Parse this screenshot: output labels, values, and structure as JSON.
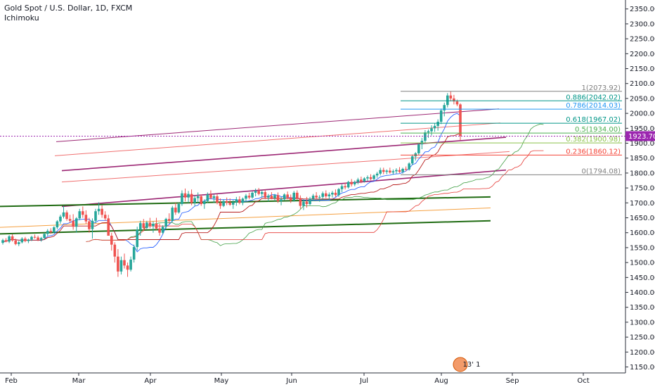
{
  "legend": {
    "symbol": "Gold Spot / U.S. Dollar, 1D, FXCM",
    "indicator": "Ichimoku"
  },
  "price_label": "1923.70",
  "event_badge": "13' 1",
  "colors": {
    "up": "#26a69a",
    "down": "#ef5350",
    "fib_gray": "#808080",
    "fib_teal": "#009688",
    "fib_blue": "#2196f3",
    "fib_green": "#4caf50",
    "fib_lime": "#8bc34a",
    "fib_red": "#f44336",
    "channel_purple": "#9c2774",
    "channel_red": "#f07070",
    "green_line": "#1f6b12",
    "orange_line": "#f5a040",
    "price_line": "#9c27b0"
  },
  "chart_data": {
    "type": "candlestick",
    "y_axis": {
      "min": 1130,
      "max": 2380,
      "ticks": [
        1150,
        1200,
        1250,
        1300,
        1350,
        1400,
        1450,
        1500,
        1550,
        1600,
        1650,
        1700,
        1750,
        1800,
        1850,
        1900,
        1950,
        2000,
        2050,
        2100,
        2150,
        2200,
        2250,
        2300,
        2350
      ],
      "tick_labels": [
        "1150.00",
        "1200.00",
        "1250.00",
        "1300.00",
        "1350.00",
        "1400.00",
        "1450.00",
        "1500.00",
        "1550.00",
        "1600.00",
        "1650.00",
        "1700.00",
        "1750.00",
        "1800.00",
        "1850.00",
        "1900.00",
        "1950.00",
        "2000.00",
        "2050.00",
        "2100.00",
        "2150.00",
        "2200.00",
        "2250.00",
        "2300.00",
        "2350.00"
      ]
    },
    "x_axis": {
      "labels": [
        "Feb",
        "Mar",
        "Apr",
        "May",
        "Jun",
        "Jul",
        "Aug",
        "Sep",
        "Oct"
      ]
    },
    "fib_levels": [
      {
        "label": "1(2073.92)",
        "value": 2073.92,
        "color": "#808080"
      },
      {
        "label": "0.886(2042.02)",
        "value": 2042.02,
        "color": "#009688"
      },
      {
        "label": "0.786(2014.03)",
        "value": 2014.03,
        "color": "#2196f3"
      },
      {
        "label": "0.618(1967.02)",
        "value": 1967.02,
        "color": "#009688"
      },
      {
        "label": "0.5(1934.00)",
        "value": 1934.0,
        "color": "#4caf50"
      },
      {
        "label": "0.382(1900.98)",
        "value": 1900.98,
        "color": "#8bc34a"
      },
      {
        "label": "0.236(1860.12)",
        "value": 1860.12,
        "color": "#f44336"
      },
      {
        "label": "0(1794.08)",
        "value": 1794.08,
        "color": "#808080"
      }
    ],
    "last_price": 1923.7,
    "candles": [
      {
        "o": 1566,
        "h": 1580,
        "l": 1560,
        "c": 1575
      },
      {
        "o": 1575,
        "h": 1582,
        "l": 1568,
        "c": 1570
      },
      {
        "o": 1570,
        "h": 1592,
        "l": 1565,
        "c": 1588
      },
      {
        "o": 1588,
        "h": 1595,
        "l": 1570,
        "c": 1574
      },
      {
        "o": 1574,
        "h": 1580,
        "l": 1558,
        "c": 1562
      },
      {
        "o": 1562,
        "h": 1572,
        "l": 1555,
        "c": 1568
      },
      {
        "o": 1568,
        "h": 1585,
        "l": 1564,
        "c": 1580
      },
      {
        "o": 1580,
        "h": 1586,
        "l": 1568,
        "c": 1572
      },
      {
        "o": 1572,
        "h": 1580,
        "l": 1565,
        "c": 1577
      },
      {
        "o": 1577,
        "h": 1590,
        "l": 1572,
        "c": 1586
      },
      {
        "o": 1586,
        "h": 1594,
        "l": 1580,
        "c": 1584
      },
      {
        "o": 1584,
        "h": 1590,
        "l": 1572,
        "c": 1576
      },
      {
        "o": 1576,
        "h": 1586,
        "l": 1570,
        "c": 1582
      },
      {
        "o": 1582,
        "h": 1600,
        "l": 1578,
        "c": 1596
      },
      {
        "o": 1596,
        "h": 1612,
        "l": 1590,
        "c": 1606
      },
      {
        "o": 1606,
        "h": 1615,
        "l": 1596,
        "c": 1602
      },
      {
        "o": 1602,
        "h": 1622,
        "l": 1598,
        "c": 1618
      },
      {
        "o": 1618,
        "h": 1642,
        "l": 1612,
        "c": 1638
      },
      {
        "o": 1638,
        "h": 1660,
        "l": 1630,
        "c": 1654
      },
      {
        "o": 1654,
        "h": 1690,
        "l": 1648,
        "c": 1668
      },
      {
        "o": 1668,
        "h": 1675,
        "l": 1640,
        "c": 1646
      },
      {
        "o": 1646,
        "h": 1660,
        "l": 1632,
        "c": 1640
      },
      {
        "o": 1640,
        "h": 1662,
        "l": 1610,
        "c": 1620
      },
      {
        "o": 1620,
        "h": 1652,
        "l": 1600,
        "c": 1648
      },
      {
        "o": 1648,
        "h": 1680,
        "l": 1642,
        "c": 1672
      },
      {
        "o": 1672,
        "h": 1688,
        "l": 1650,
        "c": 1660
      },
      {
        "o": 1660,
        "h": 1675,
        "l": 1630,
        "c": 1638
      },
      {
        "o": 1638,
        "h": 1650,
        "l": 1600,
        "c": 1612
      },
      {
        "o": 1612,
        "h": 1648,
        "l": 1580,
        "c": 1640
      },
      {
        "o": 1640,
        "h": 1680,
        "l": 1632,
        "c": 1672
      },
      {
        "o": 1672,
        "h": 1702,
        "l": 1660,
        "c": 1680
      },
      {
        "o": 1680,
        "h": 1692,
        "l": 1650,
        "c": 1660
      },
      {
        "o": 1660,
        "h": 1672,
        "l": 1640,
        "c": 1648
      },
      {
        "o": 1648,
        "h": 1660,
        "l": 1590,
        "c": 1590
      },
      {
        "o": 1590,
        "h": 1600,
        "l": 1540,
        "c": 1560
      },
      {
        "o": 1560,
        "h": 1568,
        "l": 1500,
        "c": 1520
      },
      {
        "o": 1520,
        "h": 1545,
        "l": 1452,
        "c": 1470
      },
      {
        "o": 1470,
        "h": 1520,
        "l": 1460,
        "c": 1508
      },
      {
        "o": 1508,
        "h": 1530,
        "l": 1480,
        "c": 1490
      },
      {
        "o": 1490,
        "h": 1500,
        "l": 1452,
        "c": 1476
      },
      {
        "o": 1476,
        "h": 1520,
        "l": 1470,
        "c": 1510
      },
      {
        "o": 1510,
        "h": 1560,
        "l": 1500,
        "c": 1552
      },
      {
        "o": 1552,
        "h": 1620,
        "l": 1540,
        "c": 1610
      },
      {
        "o": 1610,
        "h": 1640,
        "l": 1590,
        "c": 1632
      },
      {
        "o": 1632,
        "h": 1646,
        "l": 1605,
        "c": 1616
      },
      {
        "o": 1616,
        "h": 1640,
        "l": 1610,
        "c": 1634
      },
      {
        "o": 1634,
        "h": 1650,
        "l": 1615,
        "c": 1622
      },
      {
        "o": 1622,
        "h": 1638,
        "l": 1600,
        "c": 1630
      },
      {
        "o": 1630,
        "h": 1650,
        "l": 1610,
        "c": 1614
      },
      {
        "o": 1614,
        "h": 1630,
        "l": 1590,
        "c": 1600
      },
      {
        "o": 1600,
        "h": 1625,
        "l": 1595,
        "c": 1620
      },
      {
        "o": 1620,
        "h": 1650,
        "l": 1612,
        "c": 1646
      },
      {
        "o": 1646,
        "h": 1665,
        "l": 1630,
        "c": 1640
      },
      {
        "o": 1640,
        "h": 1690,
        "l": 1636,
        "c": 1684
      },
      {
        "o": 1684,
        "h": 1700,
        "l": 1660,
        "c": 1668
      },
      {
        "o": 1668,
        "h": 1700,
        "l": 1664,
        "c": 1696
      },
      {
        "o": 1696,
        "h": 1742,
        "l": 1690,
        "c": 1732
      },
      {
        "o": 1732,
        "h": 1748,
        "l": 1705,
        "c": 1718
      },
      {
        "o": 1718,
        "h": 1740,
        "l": 1700,
        "c": 1730
      },
      {
        "o": 1730,
        "h": 1745,
        "l": 1692,
        "c": 1700
      },
      {
        "o": 1700,
        "h": 1725,
        "l": 1688,
        "c": 1716
      },
      {
        "o": 1716,
        "h": 1735,
        "l": 1700,
        "c": 1722
      },
      {
        "o": 1722,
        "h": 1728,
        "l": 1690,
        "c": 1696
      },
      {
        "o": 1696,
        "h": 1712,
        "l": 1680,
        "c": 1706
      },
      {
        "o": 1706,
        "h": 1735,
        "l": 1700,
        "c": 1728
      },
      {
        "o": 1728,
        "h": 1742,
        "l": 1712,
        "c": 1716
      },
      {
        "o": 1716,
        "h": 1728,
        "l": 1700,
        "c": 1722
      },
      {
        "o": 1722,
        "h": 1730,
        "l": 1695,
        "c": 1700
      },
      {
        "o": 1700,
        "h": 1715,
        "l": 1680,
        "c": 1690
      },
      {
        "o": 1690,
        "h": 1712,
        "l": 1686,
        "c": 1706
      },
      {
        "o": 1706,
        "h": 1718,
        "l": 1692,
        "c": 1700
      },
      {
        "o": 1700,
        "h": 1715,
        "l": 1690,
        "c": 1694
      },
      {
        "o": 1694,
        "h": 1710,
        "l": 1680,
        "c": 1702
      },
      {
        "o": 1702,
        "h": 1720,
        "l": 1690,
        "c": 1712
      },
      {
        "o": 1712,
        "h": 1722,
        "l": 1695,
        "c": 1700
      },
      {
        "o": 1700,
        "h": 1718,
        "l": 1692,
        "c": 1714
      },
      {
        "o": 1714,
        "h": 1730,
        "l": 1705,
        "c": 1724
      },
      {
        "o": 1724,
        "h": 1734,
        "l": 1712,
        "c": 1718
      },
      {
        "o": 1718,
        "h": 1738,
        "l": 1714,
        "c": 1734
      },
      {
        "o": 1734,
        "h": 1748,
        "l": 1722,
        "c": 1740
      },
      {
        "o": 1740,
        "h": 1750,
        "l": 1725,
        "c": 1730
      },
      {
        "o": 1730,
        "h": 1742,
        "l": 1718,
        "c": 1736
      },
      {
        "o": 1736,
        "h": 1744,
        "l": 1712,
        "c": 1718
      },
      {
        "o": 1718,
        "h": 1730,
        "l": 1705,
        "c": 1724
      },
      {
        "o": 1724,
        "h": 1736,
        "l": 1712,
        "c": 1716
      },
      {
        "o": 1716,
        "h": 1730,
        "l": 1706,
        "c": 1726
      },
      {
        "o": 1726,
        "h": 1735,
        "l": 1700,
        "c": 1706
      },
      {
        "o": 1706,
        "h": 1720,
        "l": 1692,
        "c": 1712
      },
      {
        "o": 1712,
        "h": 1732,
        "l": 1708,
        "c": 1728
      },
      {
        "o": 1728,
        "h": 1738,
        "l": 1712,
        "c": 1718
      },
      {
        "o": 1718,
        "h": 1728,
        "l": 1700,
        "c": 1708
      },
      {
        "o": 1708,
        "h": 1740,
        "l": 1704,
        "c": 1734
      },
      {
        "o": 1734,
        "h": 1742,
        "l": 1710,
        "c": 1716
      },
      {
        "o": 1716,
        "h": 1725,
        "l": 1680,
        "c": 1690
      },
      {
        "o": 1690,
        "h": 1712,
        "l": 1676,
        "c": 1704
      },
      {
        "o": 1704,
        "h": 1720,
        "l": 1684,
        "c": 1696
      },
      {
        "o": 1696,
        "h": 1720,
        "l": 1692,
        "c": 1714
      },
      {
        "o": 1714,
        "h": 1730,
        "l": 1706,
        "c": 1724
      },
      {
        "o": 1724,
        "h": 1736,
        "l": 1712,
        "c": 1718
      },
      {
        "o": 1718,
        "h": 1726,
        "l": 1704,
        "c": 1720
      },
      {
        "o": 1720,
        "h": 1738,
        "l": 1712,
        "c": 1732
      },
      {
        "o": 1732,
        "h": 1742,
        "l": 1716,
        "c": 1722
      },
      {
        "o": 1722,
        "h": 1735,
        "l": 1710,
        "c": 1728
      },
      {
        "o": 1728,
        "h": 1740,
        "l": 1718,
        "c": 1734
      },
      {
        "o": 1734,
        "h": 1745,
        "l": 1720,
        "c": 1726
      },
      {
        "o": 1726,
        "h": 1750,
        "l": 1720,
        "c": 1746
      },
      {
        "o": 1746,
        "h": 1762,
        "l": 1736,
        "c": 1756
      },
      {
        "o": 1756,
        "h": 1768,
        "l": 1745,
        "c": 1752
      },
      {
        "o": 1752,
        "h": 1774,
        "l": 1748,
        "c": 1770
      },
      {
        "o": 1770,
        "h": 1780,
        "l": 1755,
        "c": 1762
      },
      {
        "o": 1762,
        "h": 1775,
        "l": 1756,
        "c": 1770
      },
      {
        "o": 1770,
        "h": 1784,
        "l": 1762,
        "c": 1778
      },
      {
        "o": 1778,
        "h": 1788,
        "l": 1766,
        "c": 1772
      },
      {
        "o": 1772,
        "h": 1786,
        "l": 1768,
        "c": 1782
      },
      {
        "o": 1782,
        "h": 1792,
        "l": 1774,
        "c": 1786
      },
      {
        "o": 1786,
        "h": 1796,
        "l": 1776,
        "c": 1780
      },
      {
        "o": 1780,
        "h": 1796,
        "l": 1776,
        "c": 1792
      },
      {
        "o": 1792,
        "h": 1804,
        "l": 1784,
        "c": 1798
      },
      {
        "o": 1798,
        "h": 1818,
        "l": 1792,
        "c": 1810
      },
      {
        "o": 1810,
        "h": 1818,
        "l": 1796,
        "c": 1804
      },
      {
        "o": 1804,
        "h": 1812,
        "l": 1796,
        "c": 1808
      },
      {
        "o": 1808,
        "h": 1818,
        "l": 1798,
        "c": 1802
      },
      {
        "o": 1802,
        "h": 1812,
        "l": 1794,
        "c": 1806
      },
      {
        "o": 1806,
        "h": 1816,
        "l": 1798,
        "c": 1810
      },
      {
        "o": 1810,
        "h": 1820,
        "l": 1800,
        "c": 1804
      },
      {
        "o": 1804,
        "h": 1818,
        "l": 1798,
        "c": 1814
      },
      {
        "o": 1814,
        "h": 1822,
        "l": 1806,
        "c": 1812
      },
      {
        "o": 1812,
        "h": 1836,
        "l": 1808,
        "c": 1832
      },
      {
        "o": 1832,
        "h": 1862,
        "l": 1826,
        "c": 1856
      },
      {
        "o": 1856,
        "h": 1870,
        "l": 1842,
        "c": 1866
      },
      {
        "o": 1866,
        "h": 1900,
        "l": 1860,
        "c": 1896
      },
      {
        "o": 1896,
        "h": 1918,
        "l": 1880,
        "c": 1908
      },
      {
        "o": 1908,
        "h": 1944,
        "l": 1900,
        "c": 1936
      },
      {
        "o": 1936,
        "h": 1946,
        "l": 1918,
        "c": 1940
      },
      {
        "o": 1940,
        "h": 1960,
        "l": 1926,
        "c": 1950
      },
      {
        "o": 1950,
        "h": 1966,
        "l": 1938,
        "c": 1958
      },
      {
        "o": 1958,
        "h": 1980,
        "l": 1942,
        "c": 1972
      },
      {
        "o": 1972,
        "h": 2016,
        "l": 1964,
        "c": 2010
      },
      {
        "o": 2010,
        "h": 2036,
        "l": 1990,
        "c": 2028
      },
      {
        "o": 2028,
        "h": 2068,
        "l": 2020,
        "c": 2060
      },
      {
        "o": 2060,
        "h": 2074,
        "l": 2040,
        "c": 2050
      },
      {
        "o": 2050,
        "h": 2062,
        "l": 2030,
        "c": 2040
      },
      {
        "o": 2040,
        "h": 2046,
        "l": 2024,
        "c": 2030
      },
      {
        "o": 2030,
        "h": 2034,
        "l": 1910,
        "c": 1924
      }
    ],
    "ichimoku": {
      "tenkan": "#2962ff",
      "lagging": "#43a047",
      "cloud_edge": "#e53935"
    }
  }
}
